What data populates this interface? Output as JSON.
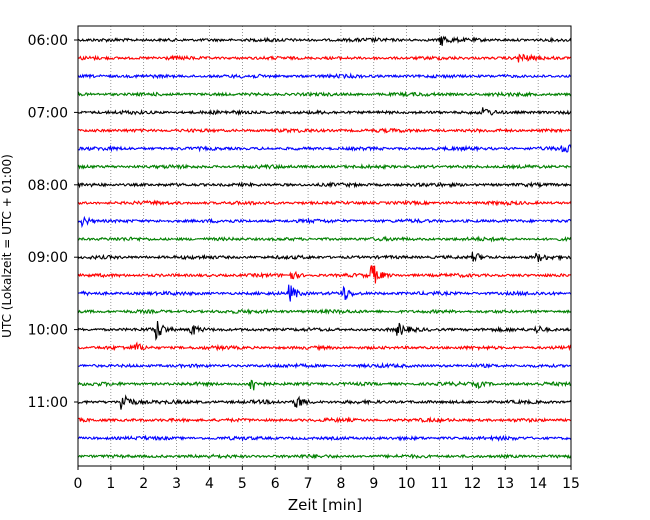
{
  "chart_data": {
    "type": "line",
    "xlabel": "Zeit  [min]",
    "ylabel": "UTC (Lokalzeit = UTC + 01:00)",
    "xlim": [
      0,
      15
    ],
    "x_ticks": [
      0,
      1,
      2,
      3,
      4,
      5,
      6,
      7,
      8,
      9,
      10,
      11,
      12,
      13,
      14,
      15
    ],
    "y_tick_labels": [
      "06:00",
      "07:00",
      "08:00",
      "09:00",
      "10:00",
      "11:00"
    ],
    "grid": "vertical dotted at each minute",
    "trace_colors": [
      "#000000",
      "#ff0000",
      "#0000ff",
      "#008000"
    ],
    "row_times": [
      "06:00",
      "06:15",
      "06:30",
      "06:45",
      "07:00",
      "07:15",
      "07:30",
      "07:45",
      "08:00",
      "08:15",
      "08:30",
      "08:45",
      "09:00",
      "09:15",
      "09:30",
      "09:45",
      "10:00",
      "10:15",
      "10:30",
      "10:45",
      "11:00",
      "11:15",
      "11:30",
      "11:45"
    ],
    "events": [
      {
        "row": "06:00",
        "x": 11.1,
        "amplitude": 0.7
      },
      {
        "row": "06:15",
        "x": 13.5,
        "amplitude": 0.5
      },
      {
        "row": "07:00",
        "x": 12.4,
        "amplitude": 0.5
      },
      {
        "row": "07:30",
        "x": 14.8,
        "amplitude": 0.7
      },
      {
        "row": "08:30",
        "x": 0.2,
        "amplitude": 0.6
      },
      {
        "row": "09:00",
        "x": 12.1,
        "amplitude": 0.6
      },
      {
        "row": "09:00",
        "x": 14.0,
        "amplitude": 0.5
      },
      {
        "row": "09:15",
        "x": 6.5,
        "amplitude": 0.6
      },
      {
        "row": "09:15",
        "x": 9.0,
        "amplitude": 1.3
      },
      {
        "row": "09:30",
        "x": 6.5,
        "amplitude": 1.1
      },
      {
        "row": "09:30",
        "x": 8.1,
        "amplitude": 1.0
      },
      {
        "row": "10:00",
        "x": 2.4,
        "amplitude": 1.5
      },
      {
        "row": "10:00",
        "x": 3.5,
        "amplitude": 0.7
      },
      {
        "row": "10:00",
        "x": 9.8,
        "amplitude": 0.7
      },
      {
        "row": "10:00",
        "x": 14.0,
        "amplitude": 0.5
      },
      {
        "row": "10:15",
        "x": 1.8,
        "amplitude": 0.5
      },
      {
        "row": "10:45",
        "x": 5.3,
        "amplitude": 1.1
      },
      {
        "row": "10:45",
        "x": 12.2,
        "amplitude": 0.4
      },
      {
        "row": "11:00",
        "x": 1.4,
        "amplitude": 1.5
      },
      {
        "row": "11:00",
        "x": 6.7,
        "amplitude": 0.9
      }
    ]
  }
}
